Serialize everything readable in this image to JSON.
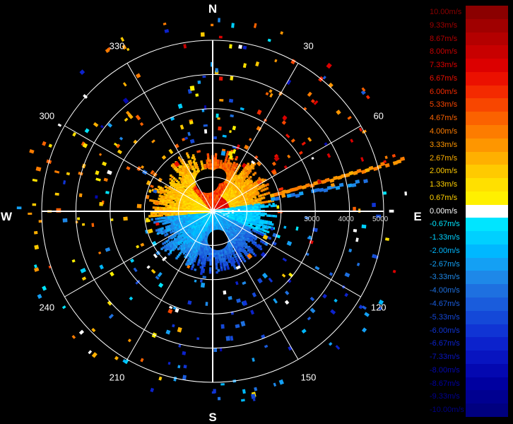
{
  "chart_data": {
    "type": "heatmap",
    "title": "",
    "compass": {
      "north": "N",
      "south": "S",
      "east": "E",
      "west": "W"
    },
    "azimuth_labels": [
      "30",
      "60",
      "120",
      "150",
      "210",
      "240",
      "300",
      "330"
    ],
    "range_labels": [
      "3000",
      "4000",
      "5000"
    ],
    "range_rings": [
      1000,
      2000,
      3000,
      4000,
      5000
    ],
    "range_max": 5000,
    "colorbar": {
      "labels": [
        "10.00m/s",
        "9.33m/s",
        "8.67m/s",
        "8.00m/s",
        "7.33m/s",
        "6.67m/s",
        "6.00m/s",
        "5.33m/s",
        "4.67m/s",
        "4.00m/s",
        "3.33m/s",
        "2.67m/s",
        "2.00m/s",
        "1.33m/s",
        "0.67m/s",
        "0.00m/s",
        "-0.67m/s",
        "-1.33m/s",
        "-2.00m/s",
        "-2.67m/s",
        "-3.33m/s",
        "-4.00m/s",
        "-4.67m/s",
        "-5.33m/s",
        "-6.00m/s",
        "-6.67m/s",
        "-7.33m/s",
        "-8.00m/s",
        "-8.67m/s",
        "-9.33m/s",
        "-10.00m/s"
      ],
      "values": [
        10.0,
        9.33,
        8.67,
        8.0,
        7.33,
        6.67,
        6.0,
        5.33,
        4.67,
        4.0,
        3.33,
        2.67,
        2.0,
        1.33,
        0.67,
        0.0,
        -0.67,
        -1.33,
        -2.0,
        -2.67,
        -3.33,
        -4.0,
        -4.67,
        -5.33,
        -6.0,
        -6.67,
        -7.33,
        -8.0,
        -8.67,
        -9.33,
        -10.0
      ],
      "colors": [
        "#8b0000",
        "#a00000",
        "#b40000",
        "#c80000",
        "#dc0000",
        "#eb1000",
        "#f42a00",
        "#f84600",
        "#fb6200",
        "#fd7c00",
        "#fe9600",
        "#ffb000",
        "#ffca00",
        "#ffe000",
        "#fff000",
        "#ffffff",
        "#00e5ff",
        "#00d0ff",
        "#00b8ff",
        "#14a0f4",
        "#1e88e8",
        "#1e70e0",
        "#1a5cdc",
        "#1448d8",
        "#1034d4",
        "#0c22cc",
        "#0814c0",
        "#0408b0",
        "#0000a0",
        "#000090",
        "#000080"
      ]
    },
    "near_field": {
      "range_km": [
        0,
        1.8
      ],
      "description_free": true,
      "sectors": [
        {
          "az_start": 265,
          "az_end": 350,
          "velocity": 2.5
        },
        {
          "az_start": 350,
          "az_end": 30,
          "velocity": 4.5
        },
        {
          "az_start": 30,
          "az_end": 80,
          "velocity": 3.0
        },
        {
          "az_start": 80,
          "az_end": 115,
          "velocity": -1.5
        },
        {
          "az_start": 115,
          "az_end": 200,
          "velocity": -4.5
        },
        {
          "az_start": 200,
          "az_end": 265,
          "velocity": -3.0
        }
      ]
    },
    "strong_echo": {
      "azimuth": 75,
      "range_km": [
        1.8,
        5.8
      ],
      "velocity": 3.5
    },
    "strong_echo_neg": {
      "azimuth": 79,
      "range_km": [
        1.8,
        4.8
      ],
      "velocity": -3.5
    }
  }
}
